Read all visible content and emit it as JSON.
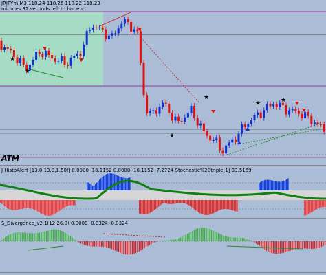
{
  "header": {
    "symbol_line": "JRJPYm,M3  118.24  118.26  118.22  118.23",
    "timer": "minutes 32 seconds left to bar end"
  },
  "labels": {
    "atm": "ATM"
  },
  "indicators": [
    {
      "label": "J HistoAlert [13.0,13.0,1.50f] 0.0000 -16.1152 0.0000 -16.1152 -7.2724 Stochastic%20triple[1] 33.5169"
    },
    {
      "label": "S_Divergence_v2.1[12,26,9] 0.0000 -0.0324 -0.0324"
    }
  ]
}
